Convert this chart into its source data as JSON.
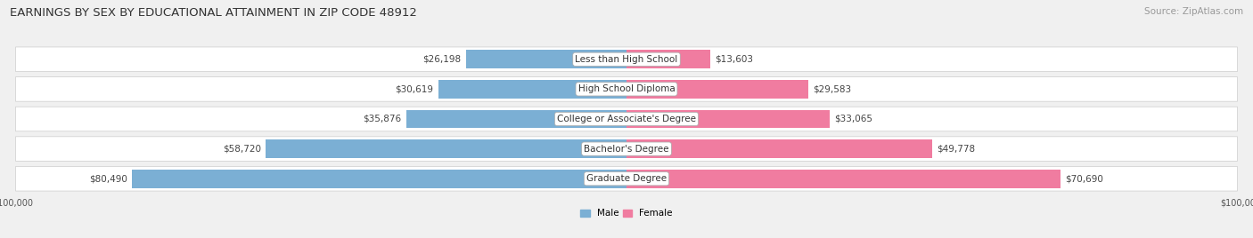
{
  "title": "EARNINGS BY SEX BY EDUCATIONAL ATTAINMENT IN ZIP CODE 48912",
  "source": "Source: ZipAtlas.com",
  "categories": [
    "Less than High School",
    "High School Diploma",
    "College or Associate's Degree",
    "Bachelor's Degree",
    "Graduate Degree"
  ],
  "male_values": [
    26198,
    30619,
    35876,
    58720,
    80490
  ],
  "female_values": [
    13603,
    29583,
    33065,
    49778,
    70690
  ],
  "male_color": "#7bafd4",
  "female_color": "#f07ca0",
  "male_label": "Male",
  "female_label": "Female",
  "max_value": 100000,
  "bg_color": "#f0f0f0",
  "row_bg_color": "#e8e8e8",
  "title_fontsize": 9.5,
  "label_fontsize": 7.5,
  "tick_fontsize": 7.0,
  "source_fontsize": 7.5
}
